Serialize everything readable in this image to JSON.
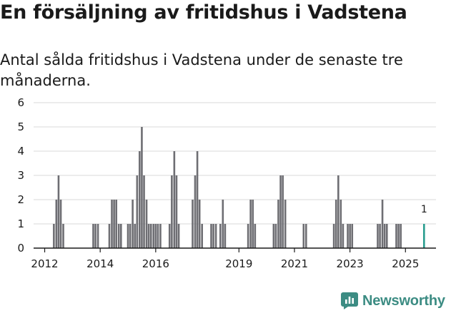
{
  "title": "En försäljning av fritidshus i Vadstena",
  "subtitle": "Antal sålda fritidshus i Vadstena under de senaste tre månaderna.",
  "brand": {
    "name": "Newsworthy",
    "icon": "newsworthy-logo-icon",
    "color": "#3c8c83"
  },
  "colors": {
    "bar": "#6e6e73",
    "highlight": "#2a9d8f",
    "grid": "#d9d9d9"
  },
  "chart_data": {
    "type": "bar",
    "title": "En försäljning av fritidshus i Vadstena",
    "xlabel": "",
    "ylabel": "",
    "ylim": [
      0,
      6
    ],
    "y_ticks": [
      "0",
      "1",
      "2",
      "3",
      "4",
      "5",
      "6"
    ],
    "x_ticks": [
      {
        "label": "2012",
        "year": 2012.0
      },
      {
        "label": "2014",
        "year": 2014.0
      },
      {
        "label": "2016",
        "year": 2016.0
      },
      {
        "label": "2019",
        "year": 2019.0
      },
      {
        "label": "2021",
        "year": 2021.0
      },
      {
        "label": "2023",
        "year": 2023.0
      },
      {
        "label": "2025",
        "year": 2025.0
      }
    ],
    "grid": true,
    "x_domain": [
      2011.6,
      2026.1
    ],
    "series": [
      {
        "points": [
          {
            "x": 2012.33,
            "y": 1
          },
          {
            "x": 2012.42,
            "y": 2
          },
          {
            "x": 2012.5,
            "y": 3
          },
          {
            "x": 2012.58,
            "y": 2
          },
          {
            "x": 2012.67,
            "y": 1
          },
          {
            "x": 2013.75,
            "y": 1
          },
          {
            "x": 2013.83,
            "y": 1
          },
          {
            "x": 2013.92,
            "y": 1
          },
          {
            "x": 2014.33,
            "y": 1
          },
          {
            "x": 2014.42,
            "y": 2
          },
          {
            "x": 2014.5,
            "y": 2
          },
          {
            "x": 2014.58,
            "y": 2
          },
          {
            "x": 2014.67,
            "y": 1
          },
          {
            "x": 2014.75,
            "y": 1
          },
          {
            "x": 2015.0,
            "y": 1
          },
          {
            "x": 2015.08,
            "y": 1
          },
          {
            "x": 2015.17,
            "y": 2
          },
          {
            "x": 2015.25,
            "y": 1
          },
          {
            "x": 2015.33,
            "y": 3
          },
          {
            "x": 2015.42,
            "y": 4
          },
          {
            "x": 2015.5,
            "y": 5
          },
          {
            "x": 2015.58,
            "y": 3
          },
          {
            "x": 2015.67,
            "y": 2
          },
          {
            "x": 2015.75,
            "y": 1
          },
          {
            "x": 2015.83,
            "y": 1
          },
          {
            "x": 2015.92,
            "y": 1
          },
          {
            "x": 2016.0,
            "y": 1
          },
          {
            "x": 2016.08,
            "y": 1
          },
          {
            "x": 2016.17,
            "y": 1
          },
          {
            "x": 2016.5,
            "y": 1
          },
          {
            "x": 2016.58,
            "y": 3
          },
          {
            "x": 2016.67,
            "y": 4
          },
          {
            "x": 2016.75,
            "y": 3
          },
          {
            "x": 2016.83,
            "y": 1
          },
          {
            "x": 2017.33,
            "y": 2
          },
          {
            "x": 2017.42,
            "y": 3
          },
          {
            "x": 2017.5,
            "y": 4
          },
          {
            "x": 2017.58,
            "y": 2
          },
          {
            "x": 2017.67,
            "y": 1
          },
          {
            "x": 2018.0,
            "y": 1
          },
          {
            "x": 2018.08,
            "y": 1
          },
          {
            "x": 2018.17,
            "y": 1
          },
          {
            "x": 2018.33,
            "y": 1
          },
          {
            "x": 2018.42,
            "y": 2
          },
          {
            "x": 2018.5,
            "y": 1
          },
          {
            "x": 2019.33,
            "y": 1
          },
          {
            "x": 2019.42,
            "y": 2
          },
          {
            "x": 2019.5,
            "y": 2
          },
          {
            "x": 2019.58,
            "y": 1
          },
          {
            "x": 2020.25,
            "y": 1
          },
          {
            "x": 2020.33,
            "y": 1
          },
          {
            "x": 2020.42,
            "y": 2
          },
          {
            "x": 2020.5,
            "y": 3
          },
          {
            "x": 2020.58,
            "y": 3
          },
          {
            "x": 2020.67,
            "y": 2
          },
          {
            "x": 2021.33,
            "y": 1
          },
          {
            "x": 2021.42,
            "y": 1
          },
          {
            "x": 2022.42,
            "y": 1
          },
          {
            "x": 2022.5,
            "y": 2
          },
          {
            "x": 2022.58,
            "y": 3
          },
          {
            "x": 2022.67,
            "y": 2
          },
          {
            "x": 2022.75,
            "y": 1
          },
          {
            "x": 2022.92,
            "y": 1
          },
          {
            "x": 2023.0,
            "y": 1
          },
          {
            "x": 2023.08,
            "y": 1
          },
          {
            "x": 2024.0,
            "y": 1
          },
          {
            "x": 2024.08,
            "y": 1
          },
          {
            "x": 2024.17,
            "y": 2
          },
          {
            "x": 2024.25,
            "y": 1
          },
          {
            "x": 2024.33,
            "y": 1
          },
          {
            "x": 2024.67,
            "y": 1
          },
          {
            "x": 2024.75,
            "y": 1
          },
          {
            "x": 2024.83,
            "y": 1
          },
          {
            "x": 2025.67,
            "y": 1,
            "highlight": true,
            "label": "1"
          }
        ]
      }
    ]
  }
}
